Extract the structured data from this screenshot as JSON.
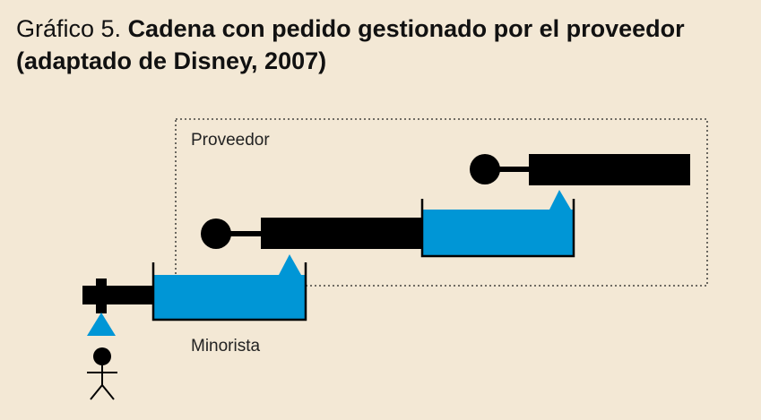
{
  "title": {
    "prefix": "Gráfico 5.",
    "main": "Cadena con pedido gestionado por el proveedor (adaptado de Disney, 2007)"
  },
  "labels": {
    "supplier": "Proveedor",
    "retailer": "Minorista"
  },
  "colors": {
    "background": "#f3e8d5",
    "water": "#0096d6",
    "pipe": "#000000"
  }
}
